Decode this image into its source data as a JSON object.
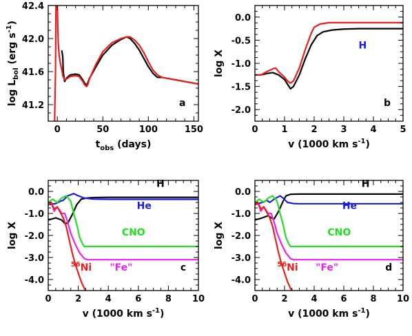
{
  "colors": {
    "black": "#000000",
    "red": "#ee1c1c",
    "blue": "#1a1ae6",
    "green": "#22e022",
    "magenta": "#ee22ee"
  },
  "chart_data": [
    {
      "id": "a",
      "type": "line",
      "panel_label": "a",
      "xlabel": "t",
      "xlabel_sub": "obs",
      "xlabel_rest": " (days)",
      "ylabel": "log L",
      "ylabel_sub": "bol",
      "ylabel_rest": " (erg s",
      "ylabel_sup": "-1",
      "ylabel_end": ")",
      "xlim": [
        -10,
        155
      ],
      "ylim": [
        41.0,
        42.4
      ],
      "xticks": [
        0,
        50,
        100,
        150
      ],
      "xtick_labels": [
        "0",
        "50",
        "100",
        "150"
      ],
      "yticks": [
        41.2,
        41.6,
        42.0,
        42.4
      ],
      "ytick_labels": [
        "41.2",
        "41.6",
        "42.0",
        "42.4"
      ],
      "series": [
        {
          "color": "black",
          "x": [
            5,
            6,
            6.5,
            8,
            10,
            14,
            20,
            24,
            26,
            28,
            30,
            32,
            33,
            34,
            35,
            38,
            42,
            50,
            60,
            70,
            76,
            80,
            85,
            90,
            95,
            100,
            105,
            110,
            115,
            120,
            130,
            140,
            150,
            155
          ],
          "y": [
            41.85,
            41.78,
            41.6,
            41.48,
            41.52,
            41.56,
            41.57,
            41.56,
            41.53,
            41.5,
            41.46,
            41.44,
            41.45,
            41.48,
            41.51,
            41.57,
            41.65,
            41.8,
            41.92,
            41.99,
            42.02,
            42.0,
            41.94,
            41.86,
            41.76,
            41.66,
            41.58,
            41.53,
            41.53,
            41.52,
            41.5,
            41.48,
            41.46,
            41.45
          ]
        },
        {
          "color": "red",
          "x": [
            0,
            0.5,
            1,
            2,
            3,
            5,
            6,
            8,
            10,
            14,
            20,
            24,
            26,
            28,
            30,
            32,
            33,
            34,
            35,
            38,
            42,
            50,
            60,
            70,
            76,
            80,
            85,
            90,
            95,
            100,
            105,
            110,
            115,
            120,
            130,
            140,
            150,
            155
          ],
          "y": [
            42.4,
            42.15,
            41.95,
            41.8,
            41.72,
            41.62,
            41.55,
            41.5,
            41.51,
            41.54,
            41.55,
            41.54,
            41.51,
            41.48,
            41.44,
            41.42,
            41.43,
            41.46,
            41.5,
            41.58,
            41.68,
            41.84,
            41.95,
            42.0,
            42.02,
            42.02,
            41.98,
            41.92,
            41.83,
            41.72,
            41.62,
            41.56,
            41.53,
            41.52,
            41.5,
            41.48,
            41.46,
            41.45
          ]
        },
        {
          "color": "red",
          "x": [
            -3,
            -2,
            -1.5
          ],
          "y": [
            41.0,
            41.6,
            42.4
          ]
        }
      ]
    },
    {
      "id": "b",
      "type": "line",
      "panel_label": "b",
      "xlabel": "v (1000 km s",
      "xlabel_sup": "-1",
      "xlabel_end": ")",
      "ylabel": "log X",
      "xlim": [
        0,
        5
      ],
      "ylim": [
        -2.25,
        0.25
      ],
      "xticks": [
        0,
        1,
        2,
        3,
        4,
        5
      ],
      "xtick_labels": [
        "0",
        "1",
        "2",
        "3",
        "4",
        "5"
      ],
      "yticks": [
        -2.0,
        -1.5,
        -1.0,
        -0.5,
        0.0
      ],
      "ytick_labels": [
        "-2.0",
        "-1.5",
        "-1.0",
        "-0.5",
        "0.0"
      ],
      "annotations": [
        {
          "text": "H",
          "color": "blue",
          "x": 3.5,
          "y": -0.68
        }
      ],
      "series": [
        {
          "color": "black",
          "x": [
            0,
            0.2,
            0.4,
            0.6,
            0.8,
            1.0,
            1.1,
            1.2,
            1.3,
            1.5,
            1.7,
            1.9,
            2.1,
            2.3,
            2.6,
            3.0,
            3.5,
            4.0,
            5.0
          ],
          "y": [
            -1.25,
            -1.25,
            -1.22,
            -1.2,
            -1.25,
            -1.35,
            -1.45,
            -1.55,
            -1.5,
            -1.25,
            -0.9,
            -0.6,
            -0.4,
            -0.32,
            -0.28,
            -0.26,
            -0.25,
            -0.25,
            -0.25
          ]
        },
        {
          "color": "red",
          "x": [
            0,
            0.2,
            0.4,
            0.5,
            0.6,
            0.7,
            0.8,
            1.0,
            1.1,
            1.2,
            1.3,
            1.5,
            1.7,
            1.9,
            2.0,
            2.2,
            2.5,
            3.0,
            4.0,
            5.0
          ],
          "y": [
            -1.25,
            -1.25,
            -1.18,
            -1.15,
            -1.12,
            -1.1,
            -1.18,
            -1.3,
            -1.38,
            -1.43,
            -1.38,
            -1.1,
            -0.7,
            -0.35,
            -0.22,
            -0.15,
            -0.12,
            -0.12,
            -0.12,
            -0.12
          ]
        }
      ]
    },
    {
      "id": "c",
      "type": "line",
      "panel_label": "c",
      "xlabel": "v (1000 km s",
      "xlabel_sup": "-1",
      "xlabel_end": ")",
      "ylabel": "log X",
      "xlim": [
        0,
        10
      ],
      "ylim": [
        -4.5,
        0.5
      ],
      "xticks": [
        0,
        2,
        4,
        6,
        8,
        10
      ],
      "xtick_labels": [
        "0",
        "2",
        "4",
        "6",
        "8",
        "10"
      ],
      "yticks": [
        -4.0,
        -3.0,
        -2.0,
        -1.0,
        0.0
      ],
      "ytick_labels": [
        "-4.0",
        "-3.0",
        "-2.0",
        "-1.0",
        "0.0"
      ],
      "annotations": [
        {
          "text": "H",
          "color": "black",
          "x": 7.2,
          "y": 0.2
        },
        {
          "text": "He",
          "color": "blue",
          "x": 5.9,
          "y": -0.8
        },
        {
          "text": "CNO",
          "color": "green",
          "x": 4.9,
          "y": -2.0
        },
        {
          "text": "\"Fe\"",
          "color": "magenta",
          "x": 4.1,
          "y": -3.6
        },
        {
          "text": "Ni",
          "sup": "56",
          "color": "red",
          "x": 1.5,
          "y": -3.6
        },
        {
          "text": "c",
          "color": "black",
          "x": 8.8,
          "y": -3.6
        }
      ],
      "series": [
        {
          "name": "H",
          "color": "black",
          "x": [
            0,
            0.5,
            0.9,
            1.1,
            1.3,
            1.6,
            1.9,
            2.2,
            2.6,
            3,
            4,
            6,
            8,
            10
          ],
          "y": [
            -1.3,
            -1.2,
            -1.3,
            -1.45,
            -1.45,
            -1.05,
            -0.6,
            -0.35,
            -0.3,
            -0.28,
            -0.27,
            -0.27,
            -0.27,
            -0.27
          ]
        },
        {
          "name": "He",
          "color": "blue",
          "x": [
            0,
            0.5,
            0.8,
            1.0,
            1.3,
            1.7,
            2.0,
            2.4,
            3,
            4,
            6,
            8,
            10
          ],
          "y": [
            -0.6,
            -0.55,
            -0.45,
            -0.4,
            -0.2,
            -0.1,
            -0.2,
            -0.3,
            -0.35,
            -0.36,
            -0.36,
            -0.36,
            -0.36
          ]
        },
        {
          "name": "CNO",
          "color": "green",
          "x": [
            0,
            0.3,
            0.6,
            0.9,
            1.2,
            1.5,
            1.7,
            1.9,
            2.1,
            2.3,
            2.4,
            2.6,
            3,
            10
          ],
          "y": [
            -0.5,
            -0.35,
            -0.5,
            -0.3,
            -0.2,
            -0.45,
            -1.0,
            -1.5,
            -2.1,
            -2.4,
            -2.5,
            -2.5,
            -2.5,
            -2.5
          ]
        },
        {
          "name": "Fe",
          "color": "magenta",
          "x": [
            0,
            0.2,
            0.4,
            0.6,
            0.9,
            1.1,
            1.3,
            1.5,
            1.8,
            2.1,
            2.4,
            2.6,
            3,
            10
          ],
          "y": [
            -0.6,
            -0.5,
            -0.9,
            -0.7,
            -1.0,
            -1.0,
            -1.4,
            -1.9,
            -2.4,
            -2.8,
            -3.05,
            -3.1,
            -3.1,
            -3.1
          ]
        },
        {
          "name": "56Ni",
          "color": "red",
          "x": [
            0,
            0.2,
            0.4,
            0.6,
            0.8,
            1.0,
            1.2,
            1.4,
            1.6,
            1.8,
            2.0,
            2.2,
            2.4,
            2.5
          ],
          "y": [
            -0.6,
            -0.5,
            -0.8,
            -0.7,
            -0.95,
            -1.2,
            -1.6,
            -2.2,
            -2.8,
            -3.3,
            -3.7,
            -4.1,
            -4.4,
            -4.5
          ]
        }
      ]
    },
    {
      "id": "d",
      "type": "line",
      "panel_label": "d",
      "xlabel": "v (1000 km s",
      "xlabel_sup": "-1",
      "xlabel_end": ")",
      "ylabel": "log X",
      "xlim": [
        0,
        10
      ],
      "ylim": [
        -4.5,
        0.5
      ],
      "xticks": [
        0,
        2,
        4,
        6,
        8,
        10
      ],
      "xtick_labels": [
        "0",
        "2",
        "4",
        "6",
        "8",
        "10"
      ],
      "yticks": [
        -4.0,
        -3.0,
        -2.0,
        -1.0,
        0.0
      ],
      "ytick_labels": [
        "-4.0",
        "-3.0",
        "-2.0",
        "-1.0",
        "0.0"
      ],
      "annotations": [
        {
          "text": "H",
          "color": "black",
          "x": 7.2,
          "y": 0.2
        },
        {
          "text": "He",
          "color": "blue",
          "x": 5.9,
          "y": -0.8
        },
        {
          "text": "CNO",
          "color": "green",
          "x": 4.9,
          "y": -2.0
        },
        {
          "text": "\"Fe\"",
          "color": "magenta",
          "x": 4.1,
          "y": -3.6
        },
        {
          "text": "Ni",
          "sup": "56",
          "color": "red",
          "x": 1.5,
          "y": -3.6
        },
        {
          "text": "d",
          "color": "black",
          "x": 8.8,
          "y": -3.6
        }
      ],
      "series": [
        {
          "name": "H",
          "color": "black",
          "x": [
            0,
            0.5,
            0.9,
            1.1,
            1.3,
            1.6,
            1.9,
            2.1,
            2.4,
            3,
            4,
            6,
            8,
            10
          ],
          "y": [
            -1.3,
            -1.2,
            -1.1,
            -1.2,
            -1.25,
            -0.9,
            -0.45,
            -0.2,
            -0.13,
            -0.12,
            -0.12,
            -0.12,
            -0.12,
            -0.12
          ]
        },
        {
          "name": "He",
          "color": "blue",
          "x": [
            0,
            0.5,
            0.8,
            1.0,
            1.3,
            1.7,
            1.9,
            2.2,
            2.6,
            3,
            4,
            6,
            8,
            10
          ],
          "y": [
            -0.6,
            -0.5,
            -0.4,
            -0.5,
            -0.35,
            -0.2,
            -0.3,
            -0.5,
            -0.55,
            -0.56,
            -0.56,
            -0.56,
            -0.56,
            -0.56
          ]
        },
        {
          "name": "CNO",
          "color": "green",
          "x": [
            0,
            0.3,
            0.6,
            0.9,
            1.2,
            1.5,
            1.7,
            1.9,
            2.1,
            2.3,
            2.4,
            2.6,
            3,
            10
          ],
          "y": [
            -0.5,
            -0.35,
            -0.5,
            -0.3,
            -0.2,
            -0.45,
            -1.0,
            -1.5,
            -2.1,
            -2.4,
            -2.5,
            -2.5,
            -2.5,
            -2.5
          ]
        },
        {
          "name": "Fe",
          "color": "magenta",
          "x": [
            0,
            0.2,
            0.4,
            0.6,
            0.9,
            1.1,
            1.3,
            1.5,
            1.8,
            2.1,
            2.4,
            2.6,
            3,
            10
          ],
          "y": [
            -0.6,
            -0.5,
            -0.9,
            -0.7,
            -1.0,
            -1.0,
            -1.4,
            -1.9,
            -2.4,
            -2.8,
            -3.05,
            -3.1,
            -3.1,
            -3.1
          ]
        },
        {
          "name": "56Ni",
          "color": "red",
          "x": [
            0,
            0.2,
            0.4,
            0.6,
            0.8,
            1.0,
            1.2,
            1.4,
            1.6,
            1.8,
            2.0,
            2.2,
            2.4,
            2.5
          ],
          "y": [
            -0.6,
            -0.5,
            -0.8,
            -0.7,
            -0.95,
            -1.2,
            -1.6,
            -2.2,
            -2.8,
            -3.3,
            -3.7,
            -4.1,
            -4.4,
            -4.5
          ]
        }
      ]
    }
  ]
}
